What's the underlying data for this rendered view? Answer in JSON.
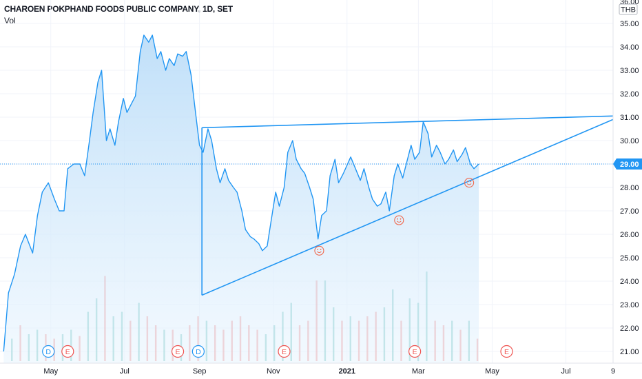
{
  "header": {
    "title": "CHAROEN POKPHAND FOODS PUBLIC COMPANY, 1D, SET",
    "volume_label": "Vol"
  },
  "colors": {
    "line": "#2196f3",
    "area_top": "#b9dcf8",
    "area_bottom": "#eaf5fe",
    "vol_up": "#26a69a",
    "vol_down": "#ef5350",
    "drawing": "#2196f3",
    "price_badge": "#2196f3",
    "smiley": "#f0674b",
    "grid": "#f0f3fa",
    "axis_text": "#131722"
  },
  "chart_data": {
    "type": "line",
    "symbol": "CHAROEN POKPHAND FOODS PUBLIC COMPANY",
    "interval": "1D",
    "exchange": "SET",
    "currency": "THB",
    "ylim": [
      20.5,
      36.0
    ],
    "y_ticks": [
      21,
      22,
      23,
      24,
      25,
      26,
      27,
      28,
      29,
      30,
      31,
      32,
      33,
      34,
      35
    ],
    "y_tick_labels": [
      "21.00",
      "22.00",
      "23.00",
      "24.00",
      "25.00",
      "26.00",
      "27.00",
      "28.00",
      "29.00",
      "30.00",
      "31.00",
      "32.00",
      "33.00",
      "34.00",
      "35.00"
    ],
    "y_top_partial_label": "36.00",
    "last_price": 29.0,
    "last_price_label": "29.00",
    "x_labels": [
      {
        "label": "May",
        "date": "2020-05-01"
      },
      {
        "label": "Jul",
        "date": "2020-07-01"
      },
      {
        "label": "Sep",
        "date": "2020-09-01"
      },
      {
        "label": "Nov",
        "date": "2020-11-01"
      },
      {
        "label": "2021",
        "date": "2021-01-01"
      },
      {
        "label": "Mar",
        "date": "2021-03-01"
      },
      {
        "label": "May",
        "date": "2021-05-01"
      },
      {
        "label": "Jul",
        "date": "2021-07-01"
      },
      {
        "label": "9",
        "date": "2021-08-09"
      }
    ],
    "price_series": [
      {
        "date": "2020-03-23",
        "close": 21.0
      },
      {
        "date": "2020-03-27",
        "close": 23.5
      },
      {
        "date": "2020-04-01",
        "close": 24.3
      },
      {
        "date": "2020-04-06",
        "close": 25.5
      },
      {
        "date": "2020-04-10",
        "close": 26.0
      },
      {
        "date": "2020-04-16",
        "close": 25.2
      },
      {
        "date": "2020-04-20",
        "close": 26.8
      },
      {
        "date": "2020-04-24",
        "close": 27.8
      },
      {
        "date": "2020-04-29",
        "close": 28.2
      },
      {
        "date": "2020-05-04",
        "close": 27.5
      },
      {
        "date": "2020-05-08",
        "close": 27.0
      },
      {
        "date": "2020-05-12",
        "close": 27.0
      },
      {
        "date": "2020-05-15",
        "close": 28.8
      },
      {
        "date": "2020-05-20",
        "close": 29.0
      },
      {
        "date": "2020-05-25",
        "close": 29.0
      },
      {
        "date": "2020-05-29",
        "close": 28.5
      },
      {
        "date": "2020-06-02",
        "close": 30.0
      },
      {
        "date": "2020-06-05",
        "close": 31.2
      },
      {
        "date": "2020-06-09",
        "close": 32.5
      },
      {
        "date": "2020-06-12",
        "close": 33.0
      },
      {
        "date": "2020-06-16",
        "close": 30.0
      },
      {
        "date": "2020-06-19",
        "close": 30.5
      },
      {
        "date": "2020-06-23",
        "close": 29.8
      },
      {
        "date": "2020-06-26",
        "close": 30.8
      },
      {
        "date": "2020-06-30",
        "close": 31.8
      },
      {
        "date": "2020-07-03",
        "close": 31.2
      },
      {
        "date": "2020-07-07",
        "close": 31.6
      },
      {
        "date": "2020-07-10",
        "close": 31.9
      },
      {
        "date": "2020-07-14",
        "close": 33.8
      },
      {
        "date": "2020-07-17",
        "close": 34.5
      },
      {
        "date": "2020-07-21",
        "close": 34.2
      },
      {
        "date": "2020-07-24",
        "close": 34.5
      },
      {
        "date": "2020-07-28",
        "close": 33.5
      },
      {
        "date": "2020-07-31",
        "close": 33.8
      },
      {
        "date": "2020-08-04",
        "close": 33.0
      },
      {
        "date": "2020-08-07",
        "close": 33.5
      },
      {
        "date": "2020-08-11",
        "close": 33.2
      },
      {
        "date": "2020-08-14",
        "close": 33.7
      },
      {
        "date": "2020-08-18",
        "close": 33.6
      },
      {
        "date": "2020-08-21",
        "close": 33.8
      },
      {
        "date": "2020-08-25",
        "close": 32.8
      },
      {
        "date": "2020-08-28",
        "close": 31.5
      },
      {
        "date": "2020-09-01",
        "close": 29.8
      },
      {
        "date": "2020-09-04",
        "close": 29.5
      },
      {
        "date": "2020-09-08",
        "close": 30.5
      },
      {
        "date": "2020-09-11",
        "close": 30.0
      },
      {
        "date": "2020-09-15",
        "close": 28.8
      },
      {
        "date": "2020-09-18",
        "close": 28.2
      },
      {
        "date": "2020-09-22",
        "close": 28.8
      },
      {
        "date": "2020-09-25",
        "close": 28.3
      },
      {
        "date": "2020-09-29",
        "close": 28.0
      },
      {
        "date": "2020-10-02",
        "close": 27.8
      },
      {
        "date": "2020-10-06",
        "close": 27.0
      },
      {
        "date": "2020-10-09",
        "close": 26.2
      },
      {
        "date": "2020-10-13",
        "close": 25.9
      },
      {
        "date": "2020-10-16",
        "close": 25.8
      },
      {
        "date": "2020-10-20",
        "close": 25.6
      },
      {
        "date": "2020-10-23",
        "close": 25.3
      },
      {
        "date": "2020-10-27",
        "close": 25.5
      },
      {
        "date": "2020-10-30",
        "close": 26.5
      },
      {
        "date": "2020-11-03",
        "close": 27.8
      },
      {
        "date": "2020-11-06",
        "close": 27.2
      },
      {
        "date": "2020-11-10",
        "close": 28.0
      },
      {
        "date": "2020-11-13",
        "close": 29.5
      },
      {
        "date": "2020-11-17",
        "close": 30.0
      },
      {
        "date": "2020-11-20",
        "close": 29.2
      },
      {
        "date": "2020-11-24",
        "close": 28.8
      },
      {
        "date": "2020-11-27",
        "close": 28.6
      },
      {
        "date": "2020-12-01",
        "close": 28.0
      },
      {
        "date": "2020-12-04",
        "close": 27.5
      },
      {
        "date": "2020-12-08",
        "close": 25.8
      },
      {
        "date": "2020-12-11",
        "close": 26.8
      },
      {
        "date": "2020-12-15",
        "close": 27.0
      },
      {
        "date": "2020-12-18",
        "close": 28.5
      },
      {
        "date": "2020-12-22",
        "close": 29.2
      },
      {
        "date": "2020-12-25",
        "close": 28.2
      },
      {
        "date": "2020-12-29",
        "close": 28.6
      },
      {
        "date": "2021-01-04",
        "close": 29.3
      },
      {
        "date": "2021-01-08",
        "close": 28.8
      },
      {
        "date": "2021-01-12",
        "close": 28.3
      },
      {
        "date": "2021-01-15",
        "close": 28.8
      },
      {
        "date": "2021-01-19",
        "close": 28.0
      },
      {
        "date": "2021-01-22",
        "close": 27.5
      },
      {
        "date": "2021-01-26",
        "close": 27.2
      },
      {
        "date": "2021-01-29",
        "close": 27.3
      },
      {
        "date": "2021-02-02",
        "close": 27.8
      },
      {
        "date": "2021-02-05",
        "close": 27.0
      },
      {
        "date": "2021-02-09",
        "close": 28.5
      },
      {
        "date": "2021-02-12",
        "close": 29.0
      },
      {
        "date": "2021-02-16",
        "close": 28.4
      },
      {
        "date": "2021-02-19",
        "close": 29.0
      },
      {
        "date": "2021-02-23",
        "close": 29.8
      },
      {
        "date": "2021-02-26",
        "close": 29.2
      },
      {
        "date": "2021-03-02",
        "close": 29.5
      },
      {
        "date": "2021-03-05",
        "close": 30.8
      },
      {
        "date": "2021-03-09",
        "close": 30.3
      },
      {
        "date": "2021-03-12",
        "close": 29.3
      },
      {
        "date": "2021-03-16",
        "close": 29.8
      },
      {
        "date": "2021-03-19",
        "close": 29.5
      },
      {
        "date": "2021-03-23",
        "close": 29.0
      },
      {
        "date": "2021-03-26",
        "close": 29.2
      },
      {
        "date": "2021-03-30",
        "close": 29.6
      },
      {
        "date": "2021-04-02",
        "close": 29.1
      },
      {
        "date": "2021-04-06",
        "close": 29.4
      },
      {
        "date": "2021-04-09",
        "close": 29.7
      },
      {
        "date": "2021-04-13",
        "close": 29.0
      },
      {
        "date": "2021-04-16",
        "close": 28.8
      },
      {
        "date": "2021-04-20",
        "close": 29.0
      }
    ],
    "volume_series": {
      "note_units": "relative"
    },
    "volume_bars": [
      {
        "date": "2020-03-30",
        "up": true,
        "rel": 0.25
      },
      {
        "date": "2020-04-06",
        "up": false,
        "rel": 0.4
      },
      {
        "date": "2020-04-13",
        "up": true,
        "rel": 0.3
      },
      {
        "date": "2020-04-20",
        "up": true,
        "rel": 0.35
      },
      {
        "date": "2020-04-27",
        "up": false,
        "rel": 0.3
      },
      {
        "date": "2020-05-04",
        "up": false,
        "rel": 0.25
      },
      {
        "date": "2020-05-11",
        "up": true,
        "rel": 0.3
      },
      {
        "date": "2020-05-18",
        "up": true,
        "rel": 0.35
      },
      {
        "date": "2020-05-25",
        "up": false,
        "rel": 0.28
      },
      {
        "date": "2020-06-01",
        "up": true,
        "rel": 0.55
      },
      {
        "date": "2020-06-08",
        "up": true,
        "rel": 0.7
      },
      {
        "date": "2020-06-15",
        "up": false,
        "rel": 0.95
      },
      {
        "date": "2020-06-22",
        "up": true,
        "rel": 0.5
      },
      {
        "date": "2020-06-29",
        "up": true,
        "rel": 0.55
      },
      {
        "date": "2020-07-06",
        "up": false,
        "rel": 0.45
      },
      {
        "date": "2020-07-13",
        "up": true,
        "rel": 0.65
      },
      {
        "date": "2020-07-20",
        "up": false,
        "rel": 0.5
      },
      {
        "date": "2020-07-27",
        "up": false,
        "rel": 0.4
      },
      {
        "date": "2020-08-03",
        "up": true,
        "rel": 0.35
      },
      {
        "date": "2020-08-10",
        "up": false,
        "rel": 0.35
      },
      {
        "date": "2020-08-17",
        "up": true,
        "rel": 0.3
      },
      {
        "date": "2020-08-24",
        "up": false,
        "rel": 0.4
      },
      {
        "date": "2020-08-31",
        "up": false,
        "rel": 0.5
      },
      {
        "date": "2020-09-07",
        "up": true,
        "rel": 0.45
      },
      {
        "date": "2020-09-14",
        "up": false,
        "rel": 0.4
      },
      {
        "date": "2020-09-21",
        "up": false,
        "rel": 0.35
      },
      {
        "date": "2020-09-28",
        "up": false,
        "rel": 0.45
      },
      {
        "date": "2020-10-05",
        "up": false,
        "rel": 0.5
      },
      {
        "date": "2020-10-12",
        "up": false,
        "rel": 0.4
      },
      {
        "date": "2020-10-19",
        "up": false,
        "rel": 0.35
      },
      {
        "date": "2020-10-26",
        "up": true,
        "rel": 0.3
      },
      {
        "date": "2020-11-02",
        "up": true,
        "rel": 0.4
      },
      {
        "date": "2020-11-09",
        "up": true,
        "rel": 0.55
      },
      {
        "date": "2020-11-16",
        "up": true,
        "rel": 0.65
      },
      {
        "date": "2020-11-23",
        "up": false,
        "rel": 0.4
      },
      {
        "date": "2020-11-30",
        "up": false,
        "rel": 0.45
      },
      {
        "date": "2020-12-07",
        "up": false,
        "rel": 0.9
      },
      {
        "date": "2020-12-14",
        "up": true,
        "rel": 0.9
      },
      {
        "date": "2020-12-21",
        "up": true,
        "rel": 0.6
      },
      {
        "date": "2020-12-28",
        "up": false,
        "rel": 0.45
      },
      {
        "date": "2021-01-04",
        "up": true,
        "rel": 0.5
      },
      {
        "date": "2021-01-11",
        "up": false,
        "rel": 0.45
      },
      {
        "date": "2021-01-18",
        "up": false,
        "rel": 0.5
      },
      {
        "date": "2021-01-25",
        "up": false,
        "rel": 0.55
      },
      {
        "date": "2021-02-01",
        "up": true,
        "rel": 0.6
      },
      {
        "date": "2021-02-08",
        "up": true,
        "rel": 0.8
      },
      {
        "date": "2021-02-15",
        "up": false,
        "rel": 0.45
      },
      {
        "date": "2021-02-22",
        "up": true,
        "rel": 0.7
      },
      {
        "date": "2021-03-01",
        "up": true,
        "rel": 0.65
      },
      {
        "date": "2021-03-08",
        "up": true,
        "rel": 1.0
      },
      {
        "date": "2021-03-15",
        "up": false,
        "rel": 0.45
      },
      {
        "date": "2021-03-22",
        "up": false,
        "rel": 0.4
      },
      {
        "date": "2021-03-29",
        "up": true,
        "rel": 0.45
      },
      {
        "date": "2021-04-05",
        "up": false,
        "rel": 0.35
      },
      {
        "date": "2021-04-12",
        "up": true,
        "rel": 0.45
      },
      {
        "date": "2021-04-19",
        "up": false,
        "rel": 0.25
      }
    ],
    "event_markers": [
      {
        "type": "D",
        "label": "D",
        "date": "2020-04-29"
      },
      {
        "type": "E",
        "label": "E",
        "date": "2020-05-15"
      },
      {
        "type": "E",
        "label": "E",
        "date": "2020-08-14"
      },
      {
        "type": "D",
        "label": "D",
        "date": "2020-08-31"
      },
      {
        "type": "E",
        "label": "E",
        "date": "2020-11-10"
      },
      {
        "type": "E",
        "label": "E",
        "date": "2021-02-26"
      },
      {
        "type": "E",
        "label": "E",
        "date": "2021-05-13"
      }
    ],
    "drawings": [
      {
        "type": "trendline",
        "from": {
          "date": "2020-09-03",
          "price": 23.4
        },
        "to": {
          "date": "2021-08-09",
          "price": 30.9
        }
      },
      {
        "type": "trendline",
        "from": {
          "date": "2020-09-03",
          "price": 30.55
        },
        "to": {
          "date": "2021-08-09",
          "price": 31.05
        }
      },
      {
        "type": "vertical",
        "date": "2020-09-03",
        "from_price": 23.4,
        "to_price": 30.55
      }
    ],
    "smiley_markers": [
      {
        "date": "2020-12-09",
        "price": 25.3
      },
      {
        "date": "2021-02-13",
        "price": 26.6
      },
      {
        "date": "2021-04-12",
        "price": 28.2
      }
    ]
  }
}
